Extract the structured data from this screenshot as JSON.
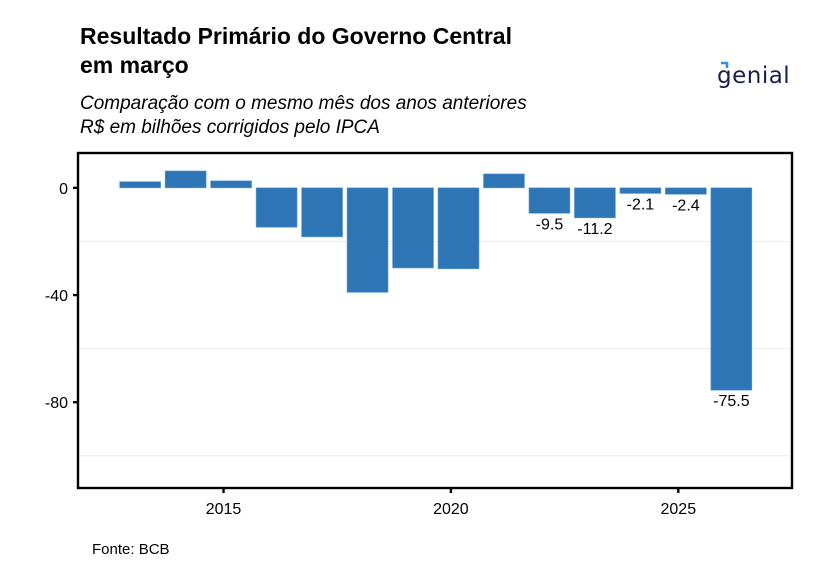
{
  "header": {
    "title_line1": "Resultado Primário do Governo Central",
    "title_line2": "em março",
    "subtitle_line1": "Comparação com o mesmo mês dos anos anteriores",
    "subtitle_line2": "R$ em bilhões corrigidos pelo IPCA"
  },
  "logo": {
    "text": "genial",
    "accent_color": "#2f8ff0",
    "text_color": "#1a1f4a"
  },
  "footer": {
    "source": "Fonte: BCB"
  },
  "colors": {
    "bar": "#2E75B6",
    "grid": "#ebebeb",
    "axis": "#000000"
  },
  "chart_data": {
    "type": "bar",
    "title": "Resultado Primário do Governo Central em março",
    "subtitle": "Comparação com o mesmo mês dos anos anteriores / R$ em bilhões corrigidos pelo IPCA",
    "xlabel": "",
    "ylabel": "",
    "categories": [
      "2013",
      "2014",
      "2015",
      "2016",
      "2017",
      "2018",
      "2019",
      "2020",
      "2021",
      "2022",
      "2023",
      "2024",
      "2025",
      "2026"
    ],
    "values": [
      2.3,
      6.3,
      2.6,
      -14.7,
      -18.3,
      -39.0,
      -29.9,
      -30.2,
      5.2,
      -9.5,
      -11.2,
      -2.1,
      -2.4,
      -75.5
    ],
    "data_labels": [
      null,
      null,
      null,
      null,
      null,
      null,
      null,
      null,
      null,
      "-9.5",
      "-11.2",
      "-2.1",
      "-2.4",
      "-75.5"
    ],
    "x_ticks": [
      "2015",
      "2020",
      "2025"
    ],
    "y_ticks": [
      "0",
      "-40",
      "-80"
    ],
    "ylim": [
      -112,
      13
    ],
    "xlim": [
      2011.8,
      2027.5
    ],
    "grid": "minor horizontal lines at -20, -60, -100",
    "legend": "none"
  }
}
